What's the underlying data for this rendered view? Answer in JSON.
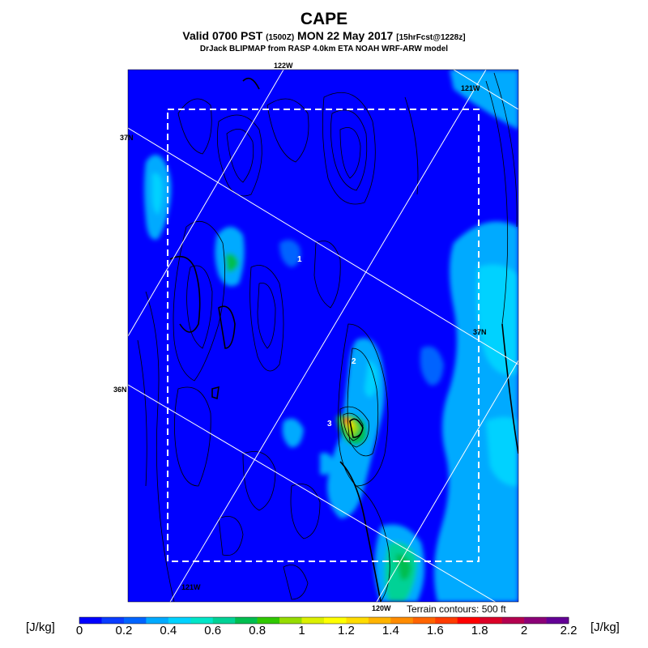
{
  "header": {
    "title": "CAPE",
    "subtitle_main_left": "Valid 0700 PST",
    "subtitle_small_left": "(1500Z)",
    "subtitle_main_right": "MON 22 May 2017",
    "subtitle_small_right": "[15hrFcst@1228z]",
    "credit": "DrJack BLIPMAP from RASP 4.0km ETA NOAH WRF-ARW model"
  },
  "map": {
    "graticule_labels": {
      "top_122w": "122W",
      "top_121w": "121W",
      "left_37n": "37N",
      "right_37n": "37N",
      "left_36n": "36N",
      "bottom_121w": "121W",
      "bottom_120w": "120W"
    },
    "point_labels": [
      "1",
      "2",
      "3"
    ],
    "terrain_note": "Terrain contours: 500 ft"
  },
  "colorbar": {
    "unit_left": "[J/kg]",
    "unit_right": "[J/kg]",
    "ticks": [
      "0",
      "0.2",
      "0.4",
      "0.6",
      "0.8",
      "1",
      "1.2",
      "1.4",
      "1.6",
      "1.8",
      "2",
      "2.2"
    ],
    "colors": [
      "#0000ff",
      "#0a3cff",
      "#0064ff",
      "#00aaff",
      "#00d2ff",
      "#00e6c8",
      "#00d296",
      "#00be50",
      "#30c800",
      "#96dc00",
      "#dcf000",
      "#ffff00",
      "#ffdc00",
      "#ffb400",
      "#ff8c00",
      "#ff6400",
      "#ff3c00",
      "#ff0000",
      "#dc0028",
      "#b40050",
      "#8c0078",
      "#640096"
    ]
  },
  "colors": {
    "background_cape": "#0000ff",
    "box_dash": "#ffffff",
    "graticule": "#ffffff",
    "terrain_contour": "#000000"
  }
}
